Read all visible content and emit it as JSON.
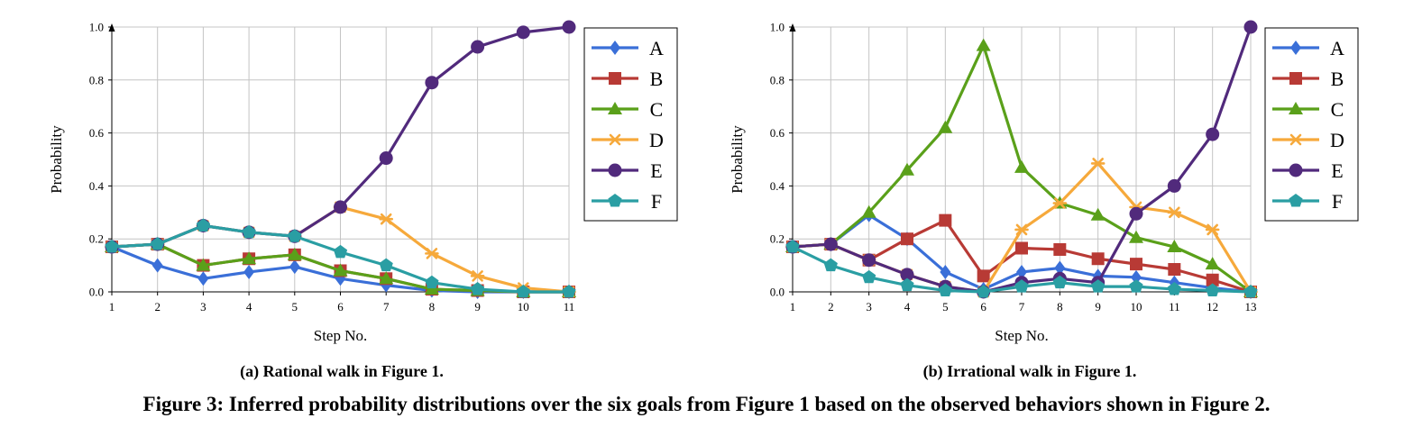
{
  "figure_caption": "Figure 3: Inferred probability distributions over the six goals from Figure 1 based on the observed behaviors shown in Figure 2.",
  "series_colors": {
    "A": "#3a6fd8",
    "B": "#b83a35",
    "C": "#5aa01a",
    "D": "#f6a93b",
    "E": "#512a7c",
    "F": "#2a9ea3"
  },
  "series_markers": {
    "A": "diamond",
    "B": "square",
    "C": "triangle",
    "D": "star",
    "E": "circle",
    "F": "pentagon"
  },
  "chart_data": [
    {
      "type": "line",
      "caption": "(a) Rational walk in Figure 1.",
      "xlabel": "Step No.",
      "ylabel": "Probability",
      "xlim": [
        1,
        11
      ],
      "ylim": [
        0,
        1.0
      ],
      "yticks": [
        "0.0",
        "0.2",
        "0.4",
        "0.6",
        "0.8",
        "1.0"
      ],
      "grid": true,
      "legend_position": "right",
      "x": [
        1,
        2,
        3,
        4,
        5,
        6,
        7,
        8,
        9,
        10,
        11
      ],
      "series": [
        {
          "name": "A",
          "values": [
            0.17,
            0.1,
            0.05,
            0.075,
            0.095,
            0.05,
            0.025,
            0.005,
            0.0,
            0.0,
            0.0
          ]
        },
        {
          "name": "B",
          "values": [
            0.17,
            0.18,
            0.1,
            0.125,
            0.14,
            0.08,
            0.05,
            0.01,
            0.005,
            0.0,
            0.0
          ]
        },
        {
          "name": "C",
          "values": [
            0.17,
            0.18,
            0.1,
            0.125,
            0.14,
            0.08,
            0.05,
            0.01,
            0.005,
            0.0,
            0.0
          ]
        },
        {
          "name": "D",
          "values": [
            0.17,
            0.18,
            0.25,
            0.225,
            0.21,
            0.32,
            0.275,
            0.145,
            0.06,
            0.015,
            0.0
          ]
        },
        {
          "name": "E",
          "values": [
            0.17,
            0.18,
            0.25,
            0.225,
            0.21,
            0.32,
            0.505,
            0.79,
            0.925,
            0.98,
            1.0
          ]
        },
        {
          "name": "F",
          "values": [
            0.17,
            0.18,
            0.25,
            0.225,
            0.21,
            0.15,
            0.1,
            0.035,
            0.01,
            0.0,
            0.0
          ]
        }
      ]
    },
    {
      "type": "line",
      "caption": "(b) Irrational walk in Figure 1.",
      "xlabel": "Step No.",
      "ylabel": "Probability",
      "xlim": [
        1,
        13
      ],
      "ylim": [
        0,
        1.0
      ],
      "yticks": [
        "0.0",
        "0.2",
        "0.4",
        "0.6",
        "0.8",
        "1.0"
      ],
      "grid": true,
      "legend_position": "right",
      "x": [
        1,
        2,
        3,
        4,
        5,
        6,
        7,
        8,
        9,
        10,
        11,
        12,
        13
      ],
      "series": [
        {
          "name": "A",
          "values": [
            0.17,
            0.18,
            0.29,
            0.2,
            0.075,
            0.01,
            0.075,
            0.09,
            0.06,
            0.055,
            0.035,
            0.015,
            0.0
          ]
        },
        {
          "name": "B",
          "values": [
            0.17,
            0.18,
            0.12,
            0.2,
            0.27,
            0.06,
            0.165,
            0.16,
            0.125,
            0.105,
            0.085,
            0.045,
            0.0
          ]
        },
        {
          "name": "C",
          "values": [
            0.17,
            0.18,
            0.3,
            0.46,
            0.62,
            0.93,
            0.47,
            0.335,
            0.29,
            0.205,
            0.17,
            0.105,
            0.0
          ]
        },
        {
          "name": "D",
          "values": [
            0.17,
            0.18,
            0.12,
            0.065,
            0.02,
            0.0,
            0.235,
            0.335,
            0.485,
            0.32,
            0.3,
            0.235,
            0.0
          ]
        },
        {
          "name": "E",
          "values": [
            0.17,
            0.18,
            0.12,
            0.065,
            0.02,
            0.0,
            0.035,
            0.05,
            0.035,
            0.295,
            0.4,
            0.595,
            1.0
          ]
        },
        {
          "name": "F",
          "values": [
            0.17,
            0.1,
            0.055,
            0.025,
            0.005,
            0.0,
            0.02,
            0.035,
            0.02,
            0.02,
            0.01,
            0.005,
            0.0
          ]
        }
      ]
    }
  ]
}
